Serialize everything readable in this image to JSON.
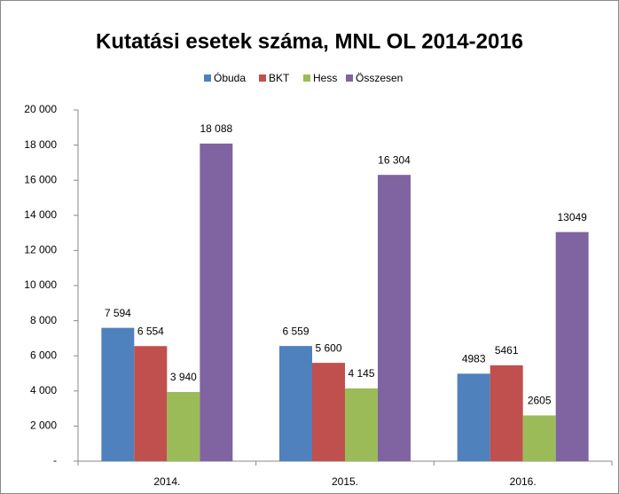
{
  "chart_data": {
    "type": "bar",
    "title": "Kutatási esetek száma, MNL OL 2014-2016",
    "categories": [
      "2014.",
      "2015.",
      "2016."
    ],
    "series": [
      {
        "name": "Óbuda",
        "color": "#4f81bd",
        "values": [
          7594,
          6559,
          4983
        ],
        "value_labels": [
          "7 594",
          "6 559",
          "4983"
        ]
      },
      {
        "name": "BKT",
        "color": "#c0504d",
        "values": [
          6554,
          5600,
          5461
        ],
        "value_labels": [
          "6 554",
          "5 600",
          "5461"
        ]
      },
      {
        "name": "Hess",
        "color": "#9bbb59",
        "values": [
          3940,
          4145,
          2605
        ],
        "value_labels": [
          "3 940",
          "4 145",
          "2605"
        ]
      },
      {
        "name": "Összesen",
        "color": "#8064a2",
        "values": [
          18088,
          16304,
          13049
        ],
        "value_labels": [
          "18 088",
          "16 304",
          "13049"
        ]
      }
    ],
    "ylim": [
      0,
      20000
    ],
    "yticks": [
      {
        "value": 0,
        "label": "-"
      },
      {
        "value": 2000,
        "label": "2 000"
      },
      {
        "value": 4000,
        "label": "4 000"
      },
      {
        "value": 6000,
        "label": "6 000"
      },
      {
        "value": 8000,
        "label": "8 000"
      },
      {
        "value": 10000,
        "label": "10 000"
      },
      {
        "value": 12000,
        "label": "12 000"
      },
      {
        "value": 14000,
        "label": "14 000"
      },
      {
        "value": 16000,
        "label": "16 000"
      },
      {
        "value": 18000,
        "label": "18 000"
      },
      {
        "value": 20000,
        "label": "20 000"
      }
    ],
    "legend": "top",
    "grid": false
  }
}
